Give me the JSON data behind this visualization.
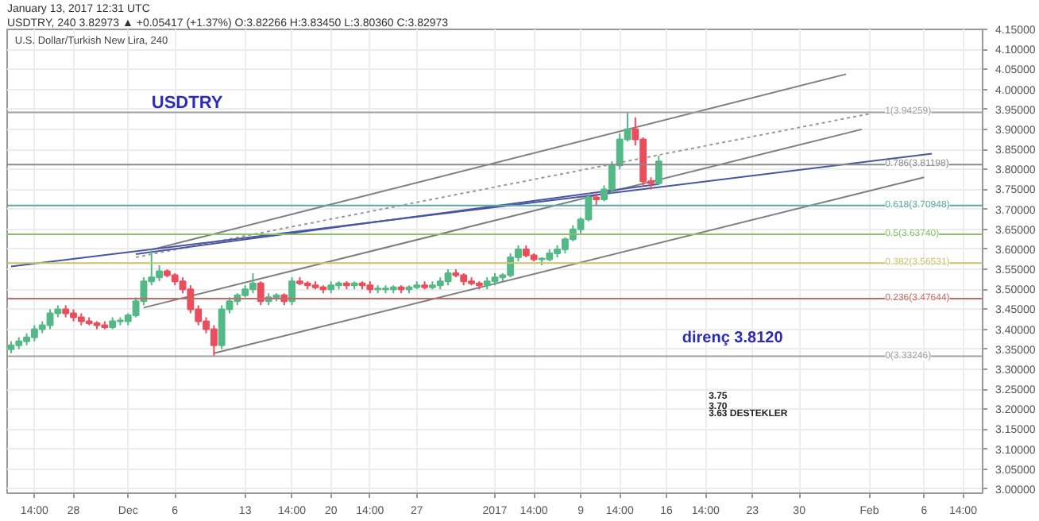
{
  "chart_data": {
    "type": "candlestick",
    "title": "USDTRY",
    "subtitle": "U.S. Dollar/Turkish New Lira, 240",
    "annotations": [
      "January 13, 2017 12:31 UTC",
      "USDTRY, 240  3.82973 ▲ +0.05417 (+1.37%)  O:3.82266  H:3.83450  L:3.80360  C:3.82973",
      "direnç 3.8120",
      "3.75",
      "3.70",
      "3.63  DESTEKLER"
    ],
    "categories": [
      null,
      null,
      null,
      "14:00",
      null,
      null,
      null,
      null,
      "28",
      null,
      null,
      null,
      null,
      null,
      null,
      "Dec",
      null,
      null,
      null,
      null,
      null,
      "6",
      null,
      null,
      null,
      null,
      null,
      null,
      null,
      null,
      "13",
      null,
      null,
      null,
      null,
      null,
      "14:00",
      null,
      null,
      null,
      null,
      "20",
      null,
      null,
      null,
      null,
      "14:00",
      null,
      null,
      null,
      null,
      null,
      "27",
      null,
      null,
      null,
      null,
      null,
      null,
      null,
      null,
      null,
      "2017",
      null,
      null,
      null,
      null,
      "14:00",
      null,
      null,
      null,
      null,
      null,
      "9",
      null,
      null,
      null,
      null,
      "14:00",
      null,
      null,
      null,
      null,
      null,
      "16",
      null,
      null,
      null,
      null,
      "14:00",
      null,
      null,
      null,
      null,
      null,
      "23",
      null,
      null,
      null,
      null,
      null,
      "30",
      null,
      null,
      null,
      null,
      null,
      null,
      null,
      null,
      "Feb",
      null,
      null,
      null,
      null,
      null,
      null,
      "6",
      null,
      null,
      null,
      null,
      "14:00",
      null,
      null
    ],
    "ohlc": [
      [
        3.35,
        3.37,
        3.34,
        3.36
      ],
      [
        3.36,
        3.38,
        3.35,
        3.37
      ],
      [
        3.37,
        3.39,
        3.36,
        3.38
      ],
      [
        3.38,
        3.41,
        3.37,
        3.4
      ],
      [
        3.4,
        3.42,
        3.39,
        3.41
      ],
      [
        3.41,
        3.45,
        3.4,
        3.44
      ],
      [
        3.44,
        3.46,
        3.43,
        3.45
      ],
      [
        3.45,
        3.46,
        3.43,
        3.44
      ],
      [
        3.44,
        3.45,
        3.42,
        3.43
      ],
      [
        3.43,
        3.44,
        3.41,
        3.42
      ],
      [
        3.42,
        3.43,
        3.41,
        3.415
      ],
      [
        3.415,
        3.42,
        3.4,
        3.41
      ],
      [
        3.41,
        3.42,
        3.4,
        3.405
      ],
      [
        3.405,
        3.43,
        3.4,
        3.42
      ],
      [
        3.42,
        3.43,
        3.41,
        3.42
      ],
      [
        3.42,
        3.44,
        3.41,
        3.435
      ],
      [
        3.435,
        3.48,
        3.43,
        3.47
      ],
      [
        3.47,
        3.53,
        3.46,
        3.52
      ],
      [
        3.52,
        3.6,
        3.51,
        3.53
      ],
      [
        3.53,
        3.56,
        3.52,
        3.545
      ],
      [
        3.545,
        3.55,
        3.53,
        3.535
      ],
      [
        3.535,
        3.54,
        3.51,
        3.52
      ],
      [
        3.52,
        3.53,
        3.49,
        3.5
      ],
      [
        3.5,
        3.51,
        3.44,
        3.45
      ],
      [
        3.45,
        3.46,
        3.41,
        3.42
      ],
      [
        3.42,
        3.43,
        3.39,
        3.4
      ],
      [
        3.4,
        3.41,
        3.33246,
        3.36
      ],
      [
        3.36,
        3.46,
        3.35,
        3.45
      ],
      [
        3.45,
        3.48,
        3.44,
        3.47
      ],
      [
        3.47,
        3.49,
        3.46,
        3.485
      ],
      [
        3.485,
        3.51,
        3.48,
        3.5
      ],
      [
        3.5,
        3.54,
        3.49,
        3.515
      ],
      [
        3.515,
        3.52,
        3.46,
        3.47
      ],
      [
        3.47,
        3.49,
        3.46,
        3.48
      ],
      [
        3.48,
        3.49,
        3.47,
        3.485
      ],
      [
        3.485,
        3.49,
        3.46,
        3.47
      ],
      [
        3.47,
        3.53,
        3.46,
        3.52
      ],
      [
        3.52,
        3.53,
        3.51,
        3.515
      ],
      [
        3.515,
        3.52,
        3.5,
        3.51
      ],
      [
        3.51,
        3.52,
        3.5,
        3.505
      ],
      [
        3.505,
        3.51,
        3.49,
        3.5
      ],
      [
        3.5,
        3.52,
        3.49,
        3.51
      ],
      [
        3.51,
        3.52,
        3.5,
        3.515
      ],
      [
        3.515,
        3.52,
        3.5,
        3.51
      ],
      [
        3.51,
        3.52,
        3.5,
        3.515
      ],
      [
        3.515,
        3.52,
        3.5,
        3.51
      ],
      [
        3.51,
        3.52,
        3.49,
        3.5
      ],
      [
        3.5,
        3.51,
        3.49,
        3.5
      ],
      [
        3.5,
        3.51,
        3.49,
        3.5
      ],
      [
        3.5,
        3.51,
        3.49,
        3.505
      ],
      [
        3.505,
        3.51,
        3.49,
        3.5
      ],
      [
        3.5,
        3.51,
        3.49,
        3.505
      ],
      [
        3.505,
        3.52,
        3.5,
        3.51
      ],
      [
        3.51,
        3.52,
        3.5,
        3.505
      ],
      [
        3.505,
        3.52,
        3.5,
        3.51
      ],
      [
        3.51,
        3.53,
        3.5,
        3.52
      ],
      [
        3.52,
        3.55,
        3.51,
        3.54
      ],
      [
        3.54,
        3.55,
        3.53,
        3.535
      ],
      [
        3.535,
        3.54,
        3.51,
        3.52
      ],
      [
        3.52,
        3.53,
        3.51,
        3.515
      ],
      [
        3.515,
        3.52,
        3.5,
        3.51
      ],
      [
        3.51,
        3.53,
        3.5,
        3.52
      ],
      [
        3.52,
        3.54,
        3.51,
        3.53
      ],
      [
        3.53,
        3.54,
        3.52,
        3.535
      ],
      [
        3.535,
        3.59,
        3.53,
        3.58
      ],
      [
        3.58,
        3.61,
        3.57,
        3.6
      ],
      [
        3.6,
        3.61,
        3.58,
        3.585
      ],
      [
        3.585,
        3.59,
        3.57,
        3.575
      ],
      [
        3.575,
        3.58,
        3.56,
        3.575
      ],
      [
        3.575,
        3.6,
        3.57,
        3.59
      ],
      [
        3.59,
        3.61,
        3.58,
        3.6
      ],
      [
        3.6,
        3.63,
        3.59,
        3.625
      ],
      [
        3.625,
        3.66,
        3.62,
        3.65
      ],
      [
        3.65,
        3.68,
        3.64,
        3.675
      ],
      [
        3.675,
        3.74,
        3.67,
        3.73
      ],
      [
        3.73,
        3.74,
        3.71,
        3.725
      ],
      [
        3.725,
        3.76,
        3.72,
        3.75
      ],
      [
        3.75,
        3.82,
        3.74,
        3.81
      ],
      [
        3.81,
        3.89,
        3.8,
        3.875
      ],
      [
        3.875,
        3.94259,
        3.87,
        3.9
      ],
      [
        3.9,
        3.93,
        3.86,
        3.875
      ],
      [
        3.875,
        3.88,
        3.76,
        3.77
      ],
      [
        3.77,
        3.78,
        3.75,
        3.765
      ],
      [
        3.765,
        3.8345,
        3.76,
        3.82
      ],
      null,
      null,
      null,
      null,
      null,
      null,
      null,
      null,
      null,
      null,
      null,
      null,
      null,
      null,
      null,
      null,
      null,
      null,
      null,
      null,
      null,
      null,
      null,
      null,
      null,
      null,
      null,
      null,
      null,
      null,
      null,
      null,
      null,
      null,
      null,
      null,
      null,
      null,
      null,
      null,
      null
    ],
    "series": [
      {
        "type": "line",
        "color": "#7f7f7f",
        "line_style": "solid",
        "values": [
          null,
          null,
          null,
          null,
          null,
          null,
          null,
          null,
          null,
          null,
          null,
          null,
          null,
          null,
          null,
          null,
          null,
          null,
          3.599,
          null,
          null,
          null,
          null,
          null,
          null,
          null,
          null,
          null,
          null,
          null,
          null,
          null,
          null,
          null,
          null,
          null,
          null,
          null,
          null,
          null,
          null,
          null,
          null,
          null,
          null,
          null,
          null,
          null,
          null,
          null,
          null,
          null,
          null,
          null,
          null,
          null,
          null,
          null,
          null,
          null,
          null,
          null,
          null,
          null,
          null,
          null,
          null,
          null,
          null,
          null,
          null,
          null,
          null,
          null,
          null,
          null,
          null,
          null,
          null,
          null,
          null,
          null,
          null,
          null,
          null,
          null,
          null,
          null,
          null,
          null,
          null,
          null,
          null,
          null,
          null,
          null,
          null,
          null,
          null,
          null,
          null,
          null,
          null,
          null,
          null,
          null,
          null,
          4.038,
          null,
          null,
          null,
          null,
          null,
          null,
          null,
          null,
          null,
          null,
          null,
          null,
          null,
          null,
          null,
          null,
          null
        ]
      },
      {
        "type": "line",
        "color": "#7f7f7f",
        "line_style": "solid",
        "values": [
          null,
          null,
          null,
          null,
          null,
          null,
          null,
          null,
          null,
          null,
          null,
          null,
          null,
          null,
          null,
          null,
          null,
          3.454,
          null,
          null,
          null,
          null,
          null,
          null,
          null,
          null,
          null,
          null,
          null,
          null,
          null,
          null,
          null,
          null,
          null,
          null,
          null,
          null,
          null,
          null,
          null,
          null,
          null,
          null,
          null,
          null,
          null,
          null,
          null,
          null,
          null,
          null,
          null,
          null,
          null,
          null,
          null,
          null,
          null,
          null,
          null,
          null,
          null,
          null,
          null,
          null,
          null,
          null,
          null,
          null,
          null,
          null,
          null,
          null,
          null,
          null,
          null,
          null,
          null,
          null,
          null,
          null,
          null,
          null,
          null,
          null,
          null,
          null,
          null,
          null,
          null,
          null,
          null,
          null,
          null,
          null,
          null,
          null,
          null,
          null,
          null,
          null,
          null,
          null,
          null,
          null,
          null,
          null,
          null,
          3.9,
          null,
          null,
          null,
          null,
          null,
          null,
          null,
          null,
          null,
          null,
          null,
          null,
          null,
          null,
          null
        ]
      },
      {
        "type": "line",
        "color": "#7f7f7f",
        "line_style": "solid",
        "values": [
          null,
          null,
          null,
          null,
          null,
          null,
          null,
          null,
          null,
          null,
          null,
          null,
          null,
          null,
          null,
          null,
          null,
          null,
          null,
          null,
          null,
          null,
          null,
          null,
          null,
          null,
          3.34,
          null,
          null,
          null,
          null,
          null,
          null,
          null,
          null,
          null,
          null,
          null,
          null,
          null,
          null,
          null,
          null,
          null,
          null,
          null,
          null,
          null,
          null,
          null,
          null,
          null,
          null,
          null,
          null,
          null,
          null,
          null,
          null,
          null,
          null,
          null,
          null,
          null,
          null,
          null,
          null,
          null,
          null,
          null,
          null,
          null,
          null,
          null,
          null,
          null,
          null,
          null,
          null,
          null,
          null,
          null,
          null,
          null,
          null,
          null,
          null,
          null,
          null,
          null,
          null,
          null,
          null,
          null,
          null,
          null,
          null,
          null,
          null,
          null,
          null,
          null,
          null,
          null,
          null,
          null,
          null,
          null,
          null,
          null,
          null,
          null,
          null,
          null,
          null,
          null,
          null,
          3.78,
          null,
          null,
          null,
          null,
          null,
          null,
          null
        ]
      },
      {
        "type": "line",
        "color": "#9a9a9a",
        "line_style": "dotted",
        "values": [
          null,
          null,
          null,
          null,
          null,
          null,
          null,
          null,
          null,
          null,
          null,
          null,
          null,
          null,
          null,
          null,
          3.58,
          null,
          null,
          null,
          null,
          null,
          null,
          null,
          null,
          null,
          null,
          null,
          null,
          null,
          null,
          null,
          null,
          null,
          null,
          null,
          null,
          null,
          null,
          null,
          null,
          null,
          null,
          null,
          null,
          null,
          null,
          null,
          null,
          null,
          null,
          null,
          null,
          null,
          null,
          null,
          null,
          null,
          null,
          null,
          null,
          null,
          null,
          null,
          null,
          null,
          null,
          null,
          null,
          null,
          null,
          null,
          null,
          null,
          null,
          null,
          null,
          null,
          null,
          null,
          null,
          null,
          null,
          null,
          null,
          null,
          null,
          null,
          null,
          null,
          null,
          null,
          null,
          null,
          null,
          null,
          null,
          null,
          null,
          null,
          null,
          null,
          null,
          null,
          null,
          null,
          null,
          null,
          null,
          null,
          3.939,
          null,
          null,
          null,
          null,
          null,
          null,
          null,
          null,
          null,
          null,
          null,
          null,
          null,
          null
        ]
      },
      {
        "type": "line",
        "color": "#4a55a2",
        "line_style": "solid",
        "values": [
          3.557,
          null,
          null,
          null,
          null,
          null,
          null,
          null,
          null,
          null,
          null,
          null,
          null,
          null,
          null,
          null,
          null,
          null,
          null,
          null,
          null,
          null,
          null,
          null,
          null,
          null,
          null,
          null,
          null,
          null,
          null,
          null,
          null,
          null,
          null,
          null,
          null,
          null,
          null,
          null,
          null,
          null,
          null,
          null,
          null,
          null,
          null,
          null,
          null,
          null,
          null,
          null,
          null,
          null,
          null,
          null,
          null,
          null,
          null,
          null,
          null,
          null,
          null,
          null,
          null,
          null,
          null,
          null,
          null,
          null,
          null,
          null,
          null,
          null,
          null,
          null,
          null,
          null,
          null,
          null,
          null,
          null,
          null,
          null,
          null,
          null,
          null,
          null,
          null,
          null,
          null,
          null,
          null,
          null,
          null,
          null,
          null,
          null,
          null,
          null,
          null,
          null,
          null,
          null,
          null,
          null,
          null,
          null,
          null,
          null,
          null,
          null,
          null,
          null,
          null,
          null,
          null,
          null,
          3.839,
          null,
          null,
          null,
          null,
          null,
          null
        ]
      },
      {
        "type": "line",
        "color": "#4a55a2",
        "line_style": "solid",
        "values": [
          null,
          null,
          null,
          null,
          null,
          null,
          null,
          null,
          null,
          null,
          null,
          null,
          null,
          null,
          null,
          null,
          3.588,
          null,
          null,
          null,
          null,
          null,
          null,
          null,
          null,
          null,
          null,
          null,
          null,
          null,
          null,
          null,
          null,
          null,
          null,
          null,
          null,
          null,
          null,
          null,
          null,
          null,
          null,
          null,
          null,
          null,
          null,
          null,
          null,
          null,
          null,
          null,
          null,
          null,
          null,
          null,
          null,
          null,
          null,
          null,
          null,
          null,
          null,
          null,
          null,
          null,
          null,
          null,
          null,
          null,
          null,
          null,
          null,
          null,
          null,
          null,
          null,
          null,
          null,
          null,
          null,
          null,
          null,
          3.763,
          null,
          null,
          null,
          null,
          null,
          null,
          null,
          null,
          null,
          null,
          null,
          null,
          null,
          null,
          null,
          null,
          null,
          null,
          null,
          null,
          null,
          null,
          null,
          null,
          null,
          null,
          null,
          null,
          null,
          null,
          null,
          null,
          null,
          null,
          null,
          null,
          null,
          null,
          null,
          null,
          null
        ]
      }
    ],
    "ref_lines": [
      {
        "axis": "y",
        "value": 3.94259,
        "label": "1(3.94259)",
        "color": "#a0a0a0"
      },
      {
        "axis": "y",
        "value": 3.81198,
        "label": "0.786(3.81198)",
        "color": "#8a8a8a"
      },
      {
        "axis": "y",
        "value": 3.70948,
        "label": "0.618(3.70948)",
        "color": "#5aaaa0"
      },
      {
        "axis": "y",
        "value": 3.6374,
        "label": "0.5(3.63740)",
        "color": "#8cbf6c"
      },
      {
        "axis": "y",
        "value": 3.56531,
        "label": "0.382(3.56531)",
        "color": "#c9c36a"
      },
      {
        "axis": "y",
        "value": 3.47644,
        "label": "0.236(3.47644)",
        "color": "#c46a6a"
      },
      {
        "axis": "y",
        "value": 3.33246,
        "label": "0(3.33246)",
        "color": "#a0a0a0"
      }
    ],
    "ylim": [
      2.99,
      4.15
    ],
    "yticks": [
      {
        "value": 3.0,
        "label": "3.00000"
      },
      {
        "value": 3.05,
        "label": "3.05000"
      },
      {
        "value": 3.1,
        "label": "3.10000"
      },
      {
        "value": 3.15,
        "label": "3.15000"
      },
      {
        "value": 3.2,
        "label": "3.20000"
      },
      {
        "value": 3.25,
        "label": "3.25000"
      },
      {
        "value": 3.3,
        "label": "3.30000"
      },
      {
        "value": 3.35,
        "label": "3.35000"
      },
      {
        "value": 3.4,
        "label": "3.40000"
      },
      {
        "value": 3.45,
        "label": "3.45000"
      },
      {
        "value": 3.5,
        "label": "3.50000"
      },
      {
        "value": 3.55,
        "label": "3.55000"
      },
      {
        "value": 3.6,
        "label": "3.60000"
      },
      {
        "value": 3.65,
        "label": "3.65000"
      },
      {
        "value": 3.7,
        "label": "3.70000"
      },
      {
        "value": 3.75,
        "label": "3.75000"
      },
      {
        "value": 3.8,
        "label": "3.80000"
      },
      {
        "value": 3.85,
        "label": "3.85000"
      },
      {
        "value": 3.9,
        "label": "3.90000"
      },
      {
        "value": 3.95,
        "label": "3.95000"
      },
      {
        "value": 4.0,
        "label": "4.00000"
      },
      {
        "value": 4.05,
        "label": "4.05000"
      },
      {
        "value": 4.1,
        "label": "4.10000"
      },
      {
        "value": 4.15,
        "label": "4.15000"
      }
    ],
    "grid": true
  }
}
